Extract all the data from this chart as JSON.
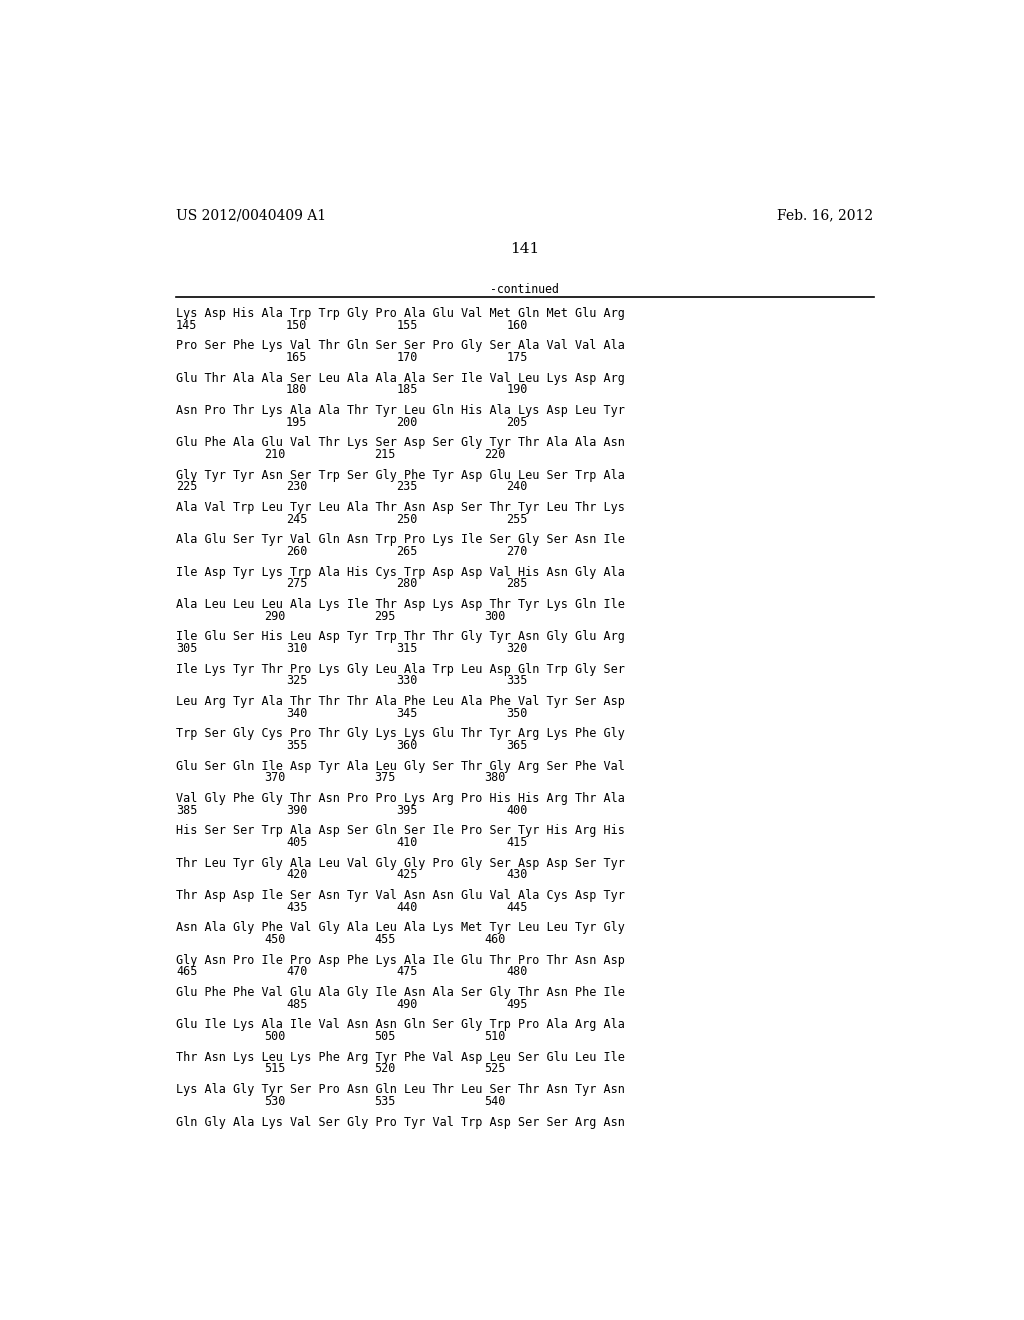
{
  "header_left": "US 2012/0040409 A1",
  "header_right": "Feb. 16, 2012",
  "page_number": "141",
  "continued_label": "-continued",
  "background_color": "#ffffff",
  "text_color": "#000000",
  "sequences": [
    {
      "text": "Lys Asp His Ala Trp Trp Gly Pro Ala Glu Val Met Gln Met Glu Arg",
      "nums": [
        [
          "145",
          "left"
        ],
        [
          "150",
          "mid1"
        ],
        [
          "155",
          "mid2"
        ],
        [
          "160",
          "right"
        ]
      ]
    },
    {
      "text": "Pro Ser Phe Lys Val Thr Gln Ser Ser Pro Gly Ser Ala Val Val Ala",
      "nums": [
        [
          "165",
          "mid1"
        ],
        [
          "170",
          "mid2"
        ],
        [
          "175",
          "right"
        ]
      ]
    },
    {
      "text": "Glu Thr Ala Ala Ser Leu Ala Ala Ala Ser Ile Val Leu Lys Asp Arg",
      "nums": [
        [
          "180",
          "mid1"
        ],
        [
          "185",
          "mid2"
        ],
        [
          "190",
          "right"
        ]
      ]
    },
    {
      "text": "Asn Pro Thr Lys Ala Ala Thr Tyr Leu Gln His Ala Lys Asp Leu Tyr",
      "nums": [
        [
          "195",
          "mid1"
        ],
        [
          "200",
          "mid2"
        ],
        [
          "205",
          "right"
        ]
      ]
    },
    {
      "text": "Glu Phe Ala Glu Val Thr Lys Ser Asp Ser Gly Tyr Thr Ala Ala Asn",
      "nums": [
        [
          "210",
          "mid1m"
        ],
        [
          "215",
          "mid2m"
        ],
        [
          "220",
          "rightm"
        ]
      ]
    },
    {
      "text": "Gly Tyr Tyr Asn Ser Trp Ser Gly Phe Tyr Asp Glu Leu Ser Trp Ala",
      "nums": [
        [
          "225",
          "left"
        ],
        [
          "230",
          "mid1"
        ],
        [
          "235",
          "mid2"
        ],
        [
          "240",
          "right"
        ]
      ]
    },
    {
      "text": "Ala Val Trp Leu Tyr Leu Ala Thr Asn Asp Ser Thr Tyr Leu Thr Lys",
      "nums": [
        [
          "245",
          "mid1"
        ],
        [
          "250",
          "mid2"
        ],
        [
          "255",
          "right"
        ]
      ]
    },
    {
      "text": "Ala Glu Ser Tyr Val Gln Asn Trp Pro Lys Ile Ser Gly Ser Asn Ile",
      "nums": [
        [
          "260",
          "mid1"
        ],
        [
          "265",
          "mid2"
        ],
        [
          "270",
          "right"
        ]
      ]
    },
    {
      "text": "Ile Asp Tyr Lys Trp Ala His Cys Trp Asp Asp Val His Asn Gly Ala",
      "nums": [
        [
          "275",
          "mid1"
        ],
        [
          "280",
          "mid2"
        ],
        [
          "285",
          "right"
        ]
      ]
    },
    {
      "text": "Ala Leu Leu Leu Ala Lys Ile Thr Asp Lys Asp Thr Tyr Lys Gln Ile",
      "nums": [
        [
          "290",
          "mid1m"
        ],
        [
          "295",
          "mid2m"
        ],
        [
          "300",
          "rightm"
        ]
      ]
    },
    {
      "text": "Ile Glu Ser His Leu Asp Tyr Trp Thr Thr Gly Tyr Asn Gly Glu Arg",
      "nums": [
        [
          "305",
          "left"
        ],
        [
          "310",
          "mid1"
        ],
        [
          "315",
          "mid2"
        ],
        [
          "320",
          "right"
        ]
      ]
    },
    {
      "text": "Ile Lys Tyr Thr Pro Lys Gly Leu Ala Trp Leu Asp Gln Trp Gly Ser",
      "nums": [
        [
          "325",
          "mid1"
        ],
        [
          "330",
          "mid2"
        ],
        [
          "335",
          "right"
        ]
      ]
    },
    {
      "text": "Leu Arg Tyr Ala Thr Thr Thr Ala Phe Leu Ala Phe Val Tyr Ser Asp",
      "nums": [
        [
          "340",
          "mid1"
        ],
        [
          "345",
          "mid2"
        ],
        [
          "350",
          "right"
        ]
      ]
    },
    {
      "text": "Trp Ser Gly Cys Pro Thr Gly Lys Lys Glu Thr Tyr Arg Lys Phe Gly",
      "nums": [
        [
          "355",
          "mid1"
        ],
        [
          "360",
          "mid2"
        ],
        [
          "365",
          "right"
        ]
      ]
    },
    {
      "text": "Glu Ser Gln Ile Asp Tyr Ala Leu Gly Ser Thr Gly Arg Ser Phe Val",
      "nums": [
        [
          "370",
          "mid1m"
        ],
        [
          "375",
          "mid2m"
        ],
        [
          "380",
          "rightm"
        ]
      ]
    },
    {
      "text": "Val Gly Phe Gly Thr Asn Pro Pro Lys Arg Pro His His Arg Thr Ala",
      "nums": [
        [
          "385",
          "left"
        ],
        [
          "390",
          "mid1"
        ],
        [
          "395",
          "mid2"
        ],
        [
          "400",
          "right"
        ]
      ]
    },
    {
      "text": "His Ser Ser Trp Ala Asp Ser Gln Ser Ile Pro Ser Tyr His Arg His",
      "nums": [
        [
          "405",
          "mid1"
        ],
        [
          "410",
          "mid2"
        ],
        [
          "415",
          "right"
        ]
      ]
    },
    {
      "text": "Thr Leu Tyr Gly Ala Leu Val Gly Gly Pro Gly Ser Asp Asp Ser Tyr",
      "nums": [
        [
          "420",
          "mid1"
        ],
        [
          "425",
          "mid2"
        ],
        [
          "430",
          "right"
        ]
      ]
    },
    {
      "text": "Thr Asp Asp Ile Ser Asn Tyr Val Asn Asn Glu Val Ala Cys Asp Tyr",
      "nums": [
        [
          "435",
          "mid1"
        ],
        [
          "440",
          "mid2"
        ],
        [
          "445",
          "right"
        ]
      ]
    },
    {
      "text": "Asn Ala Gly Phe Val Gly Ala Leu Ala Lys Met Tyr Leu Leu Tyr Gly",
      "nums": [
        [
          "450",
          "mid1m"
        ],
        [
          "455",
          "mid2m"
        ],
        [
          "460",
          "rightm"
        ]
      ]
    },
    {
      "text": "Gly Asn Pro Ile Pro Asp Phe Lys Ala Ile Glu Thr Pro Thr Asn Asp",
      "nums": [
        [
          "465",
          "left"
        ],
        [
          "470",
          "mid1"
        ],
        [
          "475",
          "mid2"
        ],
        [
          "480",
          "right"
        ]
      ]
    },
    {
      "text": "Glu Phe Phe Val Glu Ala Gly Ile Asn Ala Ser Gly Thr Asn Phe Ile",
      "nums": [
        [
          "485",
          "mid1"
        ],
        [
          "490",
          "mid2"
        ],
        [
          "495",
          "right"
        ]
      ]
    },
    {
      "text": "Glu Ile Lys Ala Ile Val Asn Asn Gln Ser Gly Trp Pro Ala Arg Ala",
      "nums": [
        [
          "500",
          "mid1m"
        ],
        [
          "505",
          "mid2m"
        ],
        [
          "510",
          "rightm"
        ]
      ]
    },
    {
      "text": "Thr Asn Lys Leu Lys Phe Arg Tyr Phe Val Asp Leu Ser Glu Leu Ile",
      "nums": [
        [
          "515",
          "mid1m"
        ],
        [
          "520",
          "mid2m"
        ],
        [
          "525",
          "rightm"
        ]
      ]
    },
    {
      "text": "Lys Ala Gly Tyr Ser Pro Asn Gln Leu Thr Leu Ser Thr Asn Tyr Asn",
      "nums": [
        [
          "530",
          "mid1m"
        ],
        [
          "535",
          "mid2m"
        ],
        [
          "540",
          "rightm"
        ]
      ]
    },
    {
      "text": "Gln Gly Ala Lys Val Ser Gly Pro Tyr Val Trp Asp Ser Ser Arg Asn",
      "nums": []
    }
  ]
}
